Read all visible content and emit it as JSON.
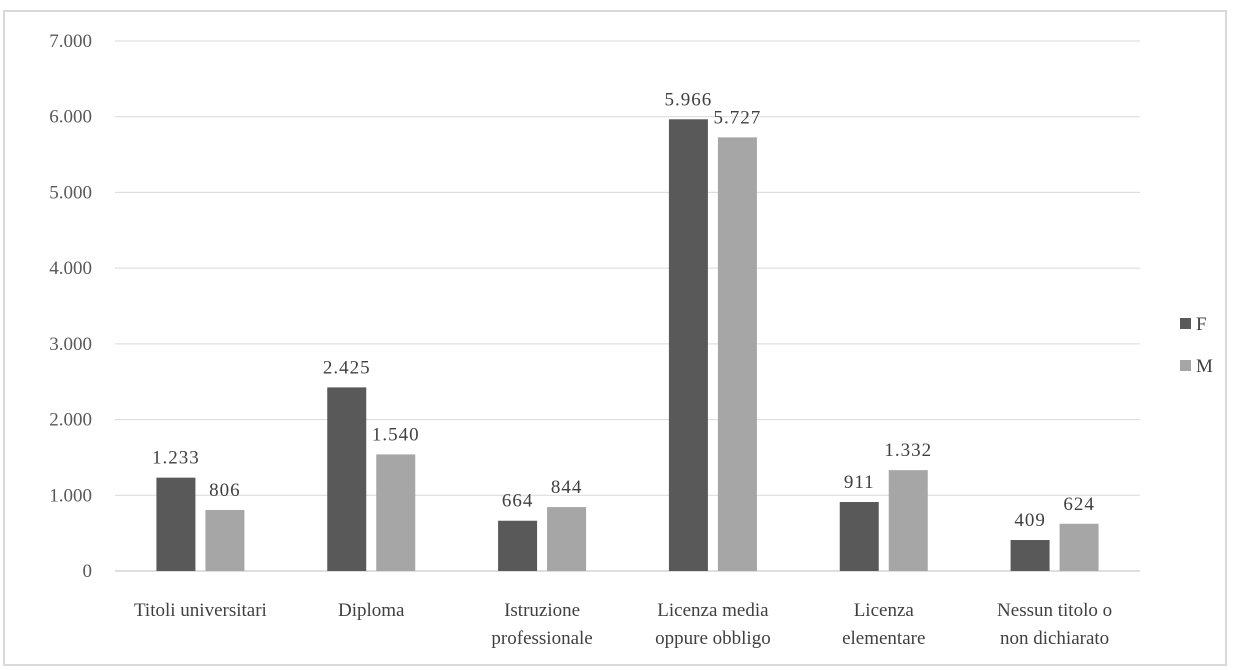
{
  "chart_data": {
    "type": "bar",
    "categories": [
      [
        "Titoli universitari"
      ],
      [
        "Diploma"
      ],
      [
        "Istruzione",
        "professionale"
      ],
      [
        "Licenza media",
        "oppure obbligo"
      ],
      [
        "Licenza",
        "elementare"
      ],
      [
        "Nessun titolo o",
        "non dichiarato"
      ]
    ],
    "series": [
      {
        "name": "F",
        "color": "#595959",
        "values": [
          1233,
          2425,
          664,
          5966,
          911,
          409
        ],
        "labels": [
          "1.233",
          "2.425",
          "664",
          "5.966",
          "911",
          "409"
        ]
      },
      {
        "name": "M",
        "color": "#a6a6a6",
        "values": [
          806,
          1540,
          844,
          5727,
          1332,
          624
        ],
        "labels": [
          "806",
          "1.540",
          "844",
          "5.727",
          "1.332",
          "624"
        ]
      }
    ],
    "ylim": [
      0,
      7000
    ],
    "yticks": [
      0,
      1000,
      2000,
      3000,
      4000,
      5000,
      6000,
      7000
    ],
    "ytick_labels": [
      "0",
      "1.000",
      "2.000",
      "3.000",
      "4.000",
      "5.000",
      "6.000",
      "7.000"
    ],
    "grid": true,
    "legend": "right",
    "title": "",
    "xlabel": "",
    "ylabel": ""
  }
}
